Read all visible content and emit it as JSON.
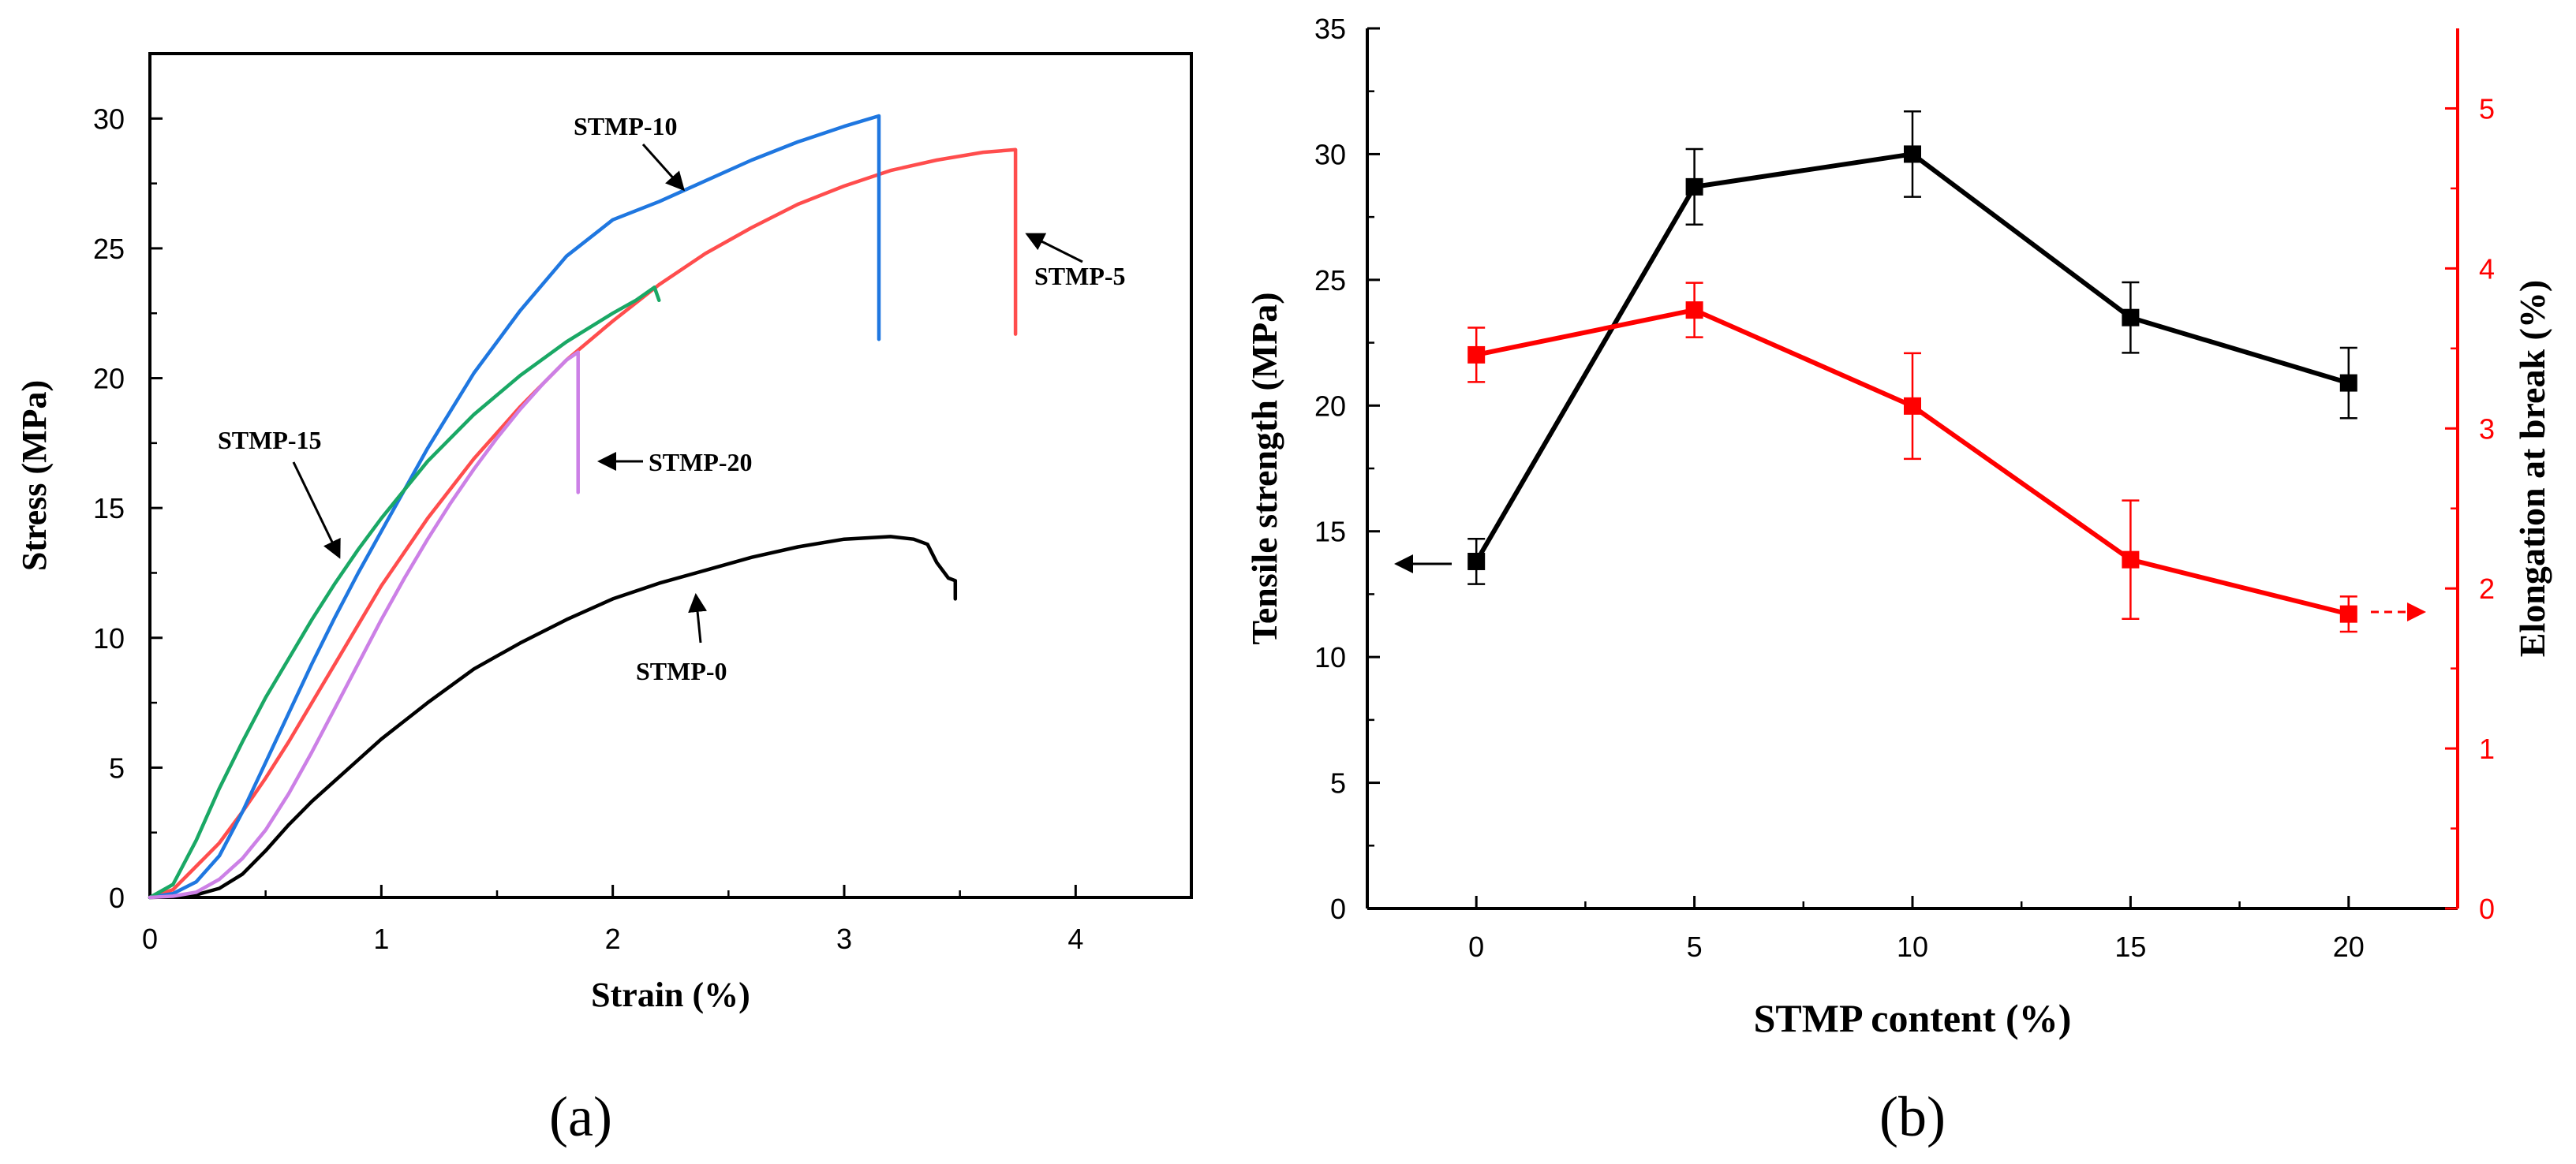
{
  "chart_data": [
    {
      "panel_label": "(a)",
      "type": "line",
      "xlabel": "Strain (%)",
      "ylabel": "Stress (MPa)",
      "xlim": [
        0,
        4.5
      ],
      "ylim": [
        0,
        32.5
      ],
      "xticks": [
        0,
        1,
        2,
        3,
        4
      ],
      "yticks": [
        0,
        5,
        10,
        15,
        20,
        25,
        30
      ],
      "grid": false,
      "series": [
        {
          "name": "STMP-0",
          "color": "#000000",
          "points": [
            [
              0,
              0
            ],
            [
              0.1,
              0.02
            ],
            [
              0.2,
              0.1
            ],
            [
              0.3,
              0.35
            ],
            [
              0.4,
              0.9
            ],
            [
              0.5,
              1.8
            ],
            [
              0.6,
              2.8
            ],
            [
              0.7,
              3.7
            ],
            [
              0.8,
              4.5
            ],
            [
              0.9,
              5.3
            ],
            [
              1.0,
              6.1
            ],
            [
              1.2,
              7.5
            ],
            [
              1.4,
              8.8
            ],
            [
              1.6,
              9.8
            ],
            [
              1.8,
              10.7
            ],
            [
              2.0,
              11.5
            ],
            [
              2.2,
              12.1
            ],
            [
              2.4,
              12.6
            ],
            [
              2.6,
              13.1
            ],
            [
              2.8,
              13.5
            ],
            [
              3.0,
              13.8
            ],
            [
              3.2,
              13.9
            ],
            [
              3.3,
              13.8
            ],
            [
              3.36,
              13.6
            ],
            [
              3.4,
              12.9
            ],
            [
              3.45,
              12.3
            ],
            [
              3.48,
              12.2
            ],
            [
              3.48,
              11.5
            ]
          ]
        },
        {
          "name": "STMP-5",
          "color": "#ff4d4d",
          "points": [
            [
              0,
              0
            ],
            [
              0.1,
              0.3
            ],
            [
              0.2,
              1.2
            ],
            [
              0.3,
              2.1
            ],
            [
              0.4,
              3.3
            ],
            [
              0.5,
              4.6
            ],
            [
              0.6,
              6.0
            ],
            [
              0.7,
              7.5
            ],
            [
              0.8,
              9.0
            ],
            [
              0.9,
              10.5
            ],
            [
              1.0,
              12.0
            ],
            [
              1.2,
              14.6
            ],
            [
              1.4,
              16.9
            ],
            [
              1.6,
              18.9
            ],
            [
              1.8,
              20.7
            ],
            [
              2.0,
              22.2
            ],
            [
              2.2,
              23.6
            ],
            [
              2.4,
              24.8
            ],
            [
              2.6,
              25.8
            ],
            [
              2.8,
              26.7
            ],
            [
              3.0,
              27.4
            ],
            [
              3.2,
              28.0
            ],
            [
              3.4,
              28.4
            ],
            [
              3.6,
              28.7
            ],
            [
              3.74,
              28.8
            ],
            [
              3.74,
              21.7
            ]
          ]
        },
        {
          "name": "STMP-10",
          "color": "#1f77e0",
          "points": [
            [
              0,
              0
            ],
            [
              0.1,
              0.15
            ],
            [
              0.2,
              0.6
            ],
            [
              0.3,
              1.6
            ],
            [
              0.4,
              3.3
            ],
            [
              0.5,
              5.2
            ],
            [
              0.6,
              7.1
            ],
            [
              0.7,
              9.0
            ],
            [
              0.8,
              10.8
            ],
            [
              0.9,
              12.5
            ],
            [
              1.0,
              14.1
            ],
            [
              1.2,
              17.3
            ],
            [
              1.4,
              20.2
            ],
            [
              1.6,
              22.6
            ],
            [
              1.8,
              24.7
            ],
            [
              2.0,
              26.1
            ],
            [
              2.2,
              26.8
            ],
            [
              2.4,
              27.6
            ],
            [
              2.6,
              28.4
            ],
            [
              2.8,
              29.1
            ],
            [
              3.0,
              29.7
            ],
            [
              3.15,
              30.1
            ],
            [
              3.15,
              21.5
            ]
          ]
        },
        {
          "name": "STMP-15",
          "color": "#1aa865",
          "points": [
            [
              0,
              0
            ],
            [
              0.1,
              0.5
            ],
            [
              0.2,
              2.2
            ],
            [
              0.3,
              4.2
            ],
            [
              0.4,
              6.0
            ],
            [
              0.5,
              7.7
            ],
            [
              0.6,
              9.2
            ],
            [
              0.7,
              10.7
            ],
            [
              0.8,
              12.1
            ],
            [
              0.9,
              13.4
            ],
            [
              1.0,
              14.6
            ],
            [
              1.2,
              16.8
            ],
            [
              1.4,
              18.6
            ],
            [
              1.6,
              20.1
            ],
            [
              1.8,
              21.4
            ],
            [
              2.0,
              22.5
            ],
            [
              2.1,
              23.0
            ],
            [
              2.18,
              23.5
            ],
            [
              2.2,
              23.0
            ]
          ]
        },
        {
          "name": "STMP-20",
          "color": "#cc80e6",
          "points": [
            [
              0,
              0
            ],
            [
              0.1,
              0.05
            ],
            [
              0.2,
              0.2
            ],
            [
              0.3,
              0.7
            ],
            [
              0.4,
              1.5
            ],
            [
              0.5,
              2.6
            ],
            [
              0.6,
              4.0
            ],
            [
              0.7,
              5.6
            ],
            [
              0.8,
              7.3
            ],
            [
              0.9,
              9.0
            ],
            [
              1.0,
              10.7
            ],
            [
              1.1,
              12.3
            ],
            [
              1.2,
              13.8
            ],
            [
              1.3,
              15.2
            ],
            [
              1.4,
              16.5
            ],
            [
              1.5,
              17.7
            ],
            [
              1.6,
              18.8
            ],
            [
              1.7,
              19.8
            ],
            [
              1.8,
              20.7
            ],
            [
              1.85,
              21.0
            ],
            [
              1.85,
              15.6
            ]
          ]
        }
      ],
      "annotations": [
        "STMP-10",
        "STMP-5",
        "STMP-15",
        "STMP-20",
        "STMP-0"
      ]
    },
    {
      "panel_label": "(b)",
      "type": "line",
      "xlabel": "STMP content (%)",
      "ylabel": "Tensile strength (MPa)",
      "y2label": "Elongation at break (%)",
      "xlim": [
        -2.5,
        22.5
      ],
      "ylim": [
        0,
        35
      ],
      "y2lim": [
        0,
        5.5
      ],
      "xticks": [
        0,
        5,
        10,
        15,
        20
      ],
      "yticks": [
        0,
        5,
        10,
        15,
        20,
        25,
        30,
        35
      ],
      "y2ticks": [
        0,
        1,
        2,
        3,
        4,
        5
      ],
      "grid": false,
      "categories": [
        0,
        5,
        10,
        15,
        20
      ],
      "series": [
        {
          "axis": "left",
          "color": "#000000",
          "values": [
            13.8,
            28.7,
            30.0,
            23.5,
            20.9
          ],
          "errors": [
            0.9,
            1.5,
            1.7,
            1.4,
            1.4
          ]
        },
        {
          "axis": "right",
          "color": "#ff0000",
          "values": [
            3.46,
            3.74,
            3.14,
            2.18,
            1.84
          ],
          "errors": [
            0.17,
            0.17,
            0.33,
            0.37,
            0.11
          ]
        }
      ]
    }
  ]
}
